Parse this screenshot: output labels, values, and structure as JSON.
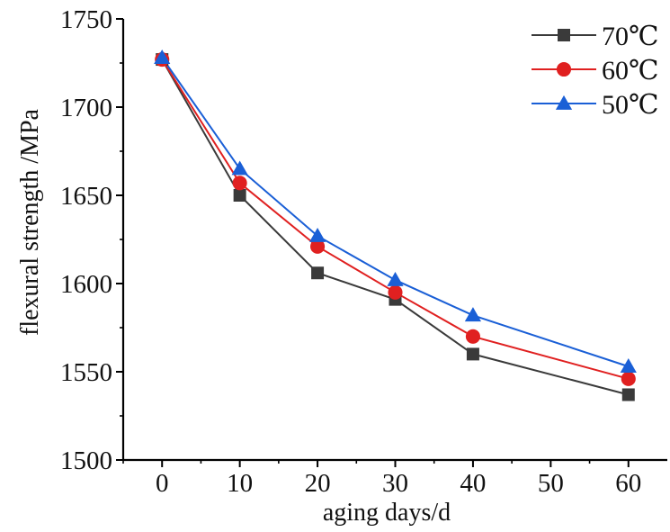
{
  "chart_data": {
    "type": "line",
    "title": "",
    "xlabel": "aging days/d",
    "ylabel": "flexural strength /MPa",
    "xlim": [
      -5,
      65
    ],
    "ylim": [
      1500,
      1750
    ],
    "xticks": [
      0,
      10,
      20,
      30,
      40,
      50,
      60
    ],
    "yticks": [
      1500,
      1550,
      1600,
      1650,
      1700,
      1750
    ],
    "x": [
      0,
      10,
      20,
      30,
      40,
      60
    ],
    "legend_position": "top-right",
    "grid": false,
    "series": [
      {
        "name": "70℃",
        "marker": "square",
        "color": "#3a3a3a",
        "values": [
          1727,
          1650,
          1606,
          1591,
          1560,
          1537
        ]
      },
      {
        "name": "60℃",
        "marker": "circle",
        "color": "#e02020",
        "values": [
          1727,
          1657,
          1621,
          1595,
          1570,
          1546
        ]
      },
      {
        "name": "50℃",
        "marker": "triangle",
        "color": "#1a5fd6",
        "values": [
          1728,
          1665,
          1627,
          1602,
          1582,
          1553
        ]
      }
    ]
  }
}
